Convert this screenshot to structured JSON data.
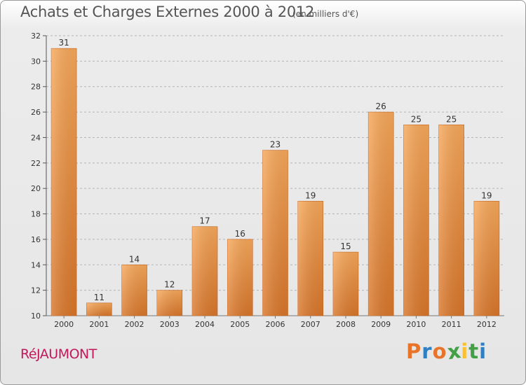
{
  "page": {
    "title": "Achats et Charges Externes 2000 à 2012",
    "unit": "(en milliers d'€)",
    "commune": "RéJAUMONT",
    "brand": {
      "text": "Proxiti",
      "colors": [
        "#e8742a",
        "#2e7fc4",
        "#e8742a",
        "#43a047",
        "#fbc02d",
        "#43a047",
        "#2e7fc4"
      ]
    }
  },
  "chart_data": {
    "type": "bar",
    "title": "Achats et Charges Externes 2000 à 2012",
    "subtitle": "(en milliers d'€)",
    "xlabel": "",
    "ylabel": "",
    "categories": [
      "2000",
      "2001",
      "2002",
      "2003",
      "2004",
      "2005",
      "2006",
      "2007",
      "2008",
      "2009",
      "2010",
      "2011",
      "2012"
    ],
    "values": [
      31,
      11,
      14,
      12,
      17,
      16,
      23,
      19,
      15,
      26,
      25,
      25,
      19
    ],
    "ylim": [
      10,
      32
    ],
    "yticks": [
      10,
      12,
      14,
      16,
      18,
      20,
      22,
      24,
      26,
      28,
      30,
      32
    ],
    "grid": true,
    "colors": {
      "bar_light": "#f7a85a",
      "bar_dark": "#d9762a",
      "grid": "#b5b5b5"
    }
  }
}
